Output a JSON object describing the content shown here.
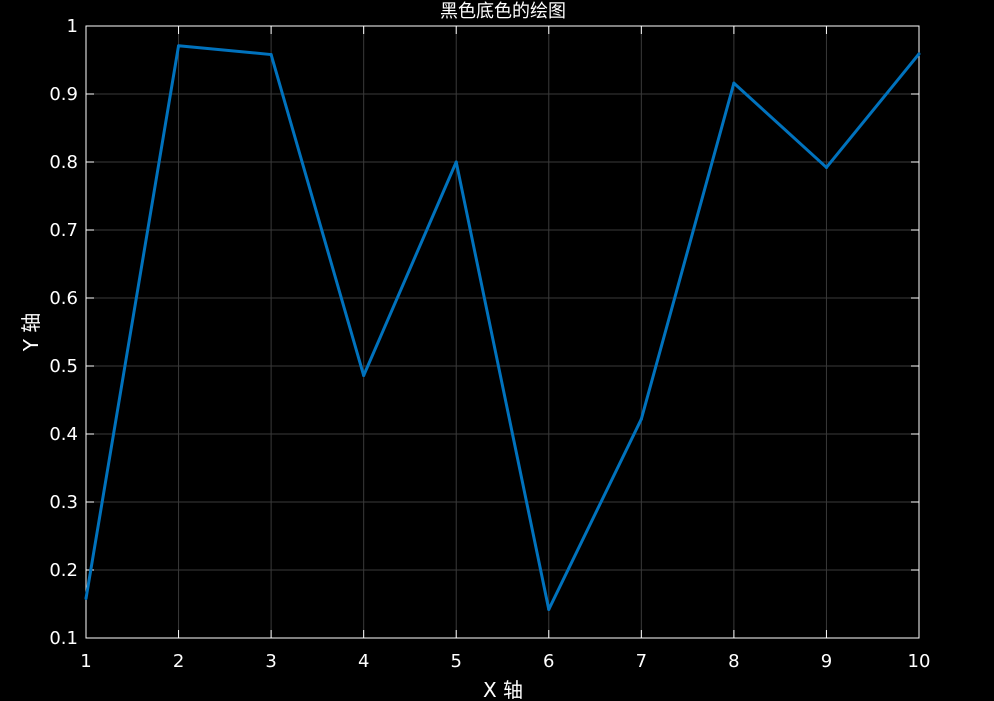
{
  "chart_data": {
    "type": "line",
    "title": "黑色底色的绘图",
    "xlabel": "X 轴",
    "ylabel": "Y 轴",
    "x": [
      1,
      2,
      3,
      4,
      5,
      6,
      7,
      8,
      9,
      10
    ],
    "series": [
      {
        "values": [
          0.158,
          0.971,
          0.958,
          0.486,
          0.8,
          0.142,
          0.422,
          0.916,
          0.792,
          0.959
        ]
      }
    ],
    "xlim": [
      1,
      10
    ],
    "ylim": [
      0.1,
      1.0
    ],
    "xticks": [
      1,
      2,
      3,
      4,
      5,
      6,
      7,
      8,
      9,
      10
    ],
    "yticks": [
      0.1,
      0.2,
      0.3,
      0.4,
      0.5,
      0.6,
      0.7,
      0.8,
      0.9,
      1.0
    ],
    "xtick_labels": [
      "1",
      "2",
      "3",
      "4",
      "5",
      "6",
      "7",
      "8",
      "9",
      "10"
    ],
    "ytick_labels": [
      "0.1",
      "0.2",
      "0.3",
      "0.4",
      "0.5",
      "0.6",
      "0.7",
      "0.8",
      "0.9",
      "1"
    ],
    "grid": true,
    "background_color": "#000000",
    "axes_color": "#ffffff",
    "grid_color": "#3a3a3a",
    "line_color": "#0072BD"
  }
}
